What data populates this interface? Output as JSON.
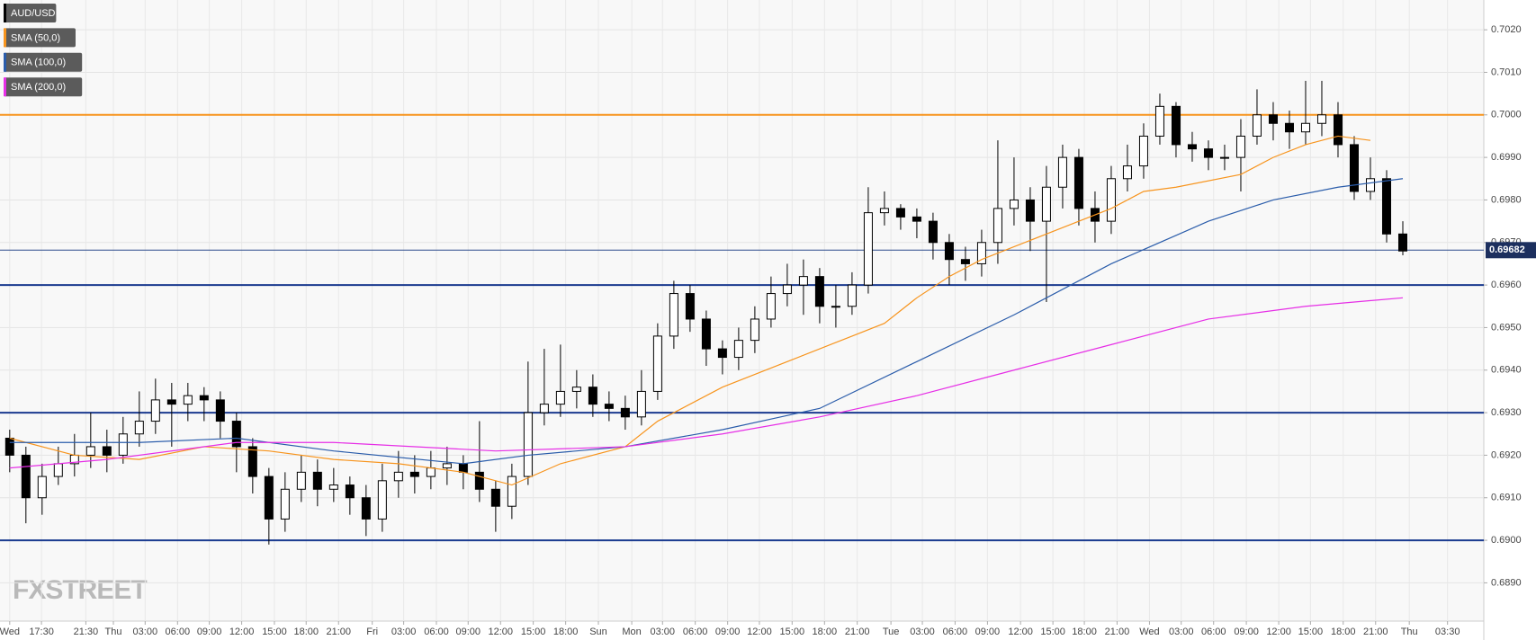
{
  "chart_data": {
    "type": "candlestick",
    "watermark": "FXSTREET",
    "xlim": [
      -0.3,
      45.5
    ],
    "ylim": [
      0.6881,
      0.7027
    ],
    "grid": true,
    "xticks": [
      {
        "value": 0,
        "label": "Wed"
      },
      {
        "value": 0.98,
        "label": "17:30"
      },
      {
        "value": 2.35,
        "label": "21:30"
      },
      {
        "value": 3.2,
        "label": "Thu"
      },
      {
        "value": 4.18,
        "label": "03:00"
      },
      {
        "value": 5.18,
        "label": "06:00"
      },
      {
        "value": 6.16,
        "label": "09:00"
      },
      {
        "value": 7.16,
        "label": "12:00"
      },
      {
        "value": 8.17,
        "label": "15:00"
      },
      {
        "value": 9.15,
        "label": "18:00"
      },
      {
        "value": 10.15,
        "label": "21:00"
      },
      {
        "value": 11.19,
        "label": "Fri"
      },
      {
        "value": 12.16,
        "label": "03:00"
      },
      {
        "value": 13.17,
        "label": "06:00"
      },
      {
        "value": 14.15,
        "label": "09:00"
      },
      {
        "value": 15.15,
        "label": "12:00"
      },
      {
        "value": 16.16,
        "label": "15:00"
      },
      {
        "value": 17.16,
        "label": "18:00"
      },
      {
        "value": 18.17,
        "label": "Sun"
      },
      {
        "value": 19.2,
        "label": "Mon"
      },
      {
        "value": 20.15,
        "label": "03:00"
      },
      {
        "value": 21.16,
        "label": "06:00"
      },
      {
        "value": 22.16,
        "label": "09:00"
      },
      {
        "value": 23.14,
        "label": "12:00"
      },
      {
        "value": 24.15,
        "label": "15:00"
      },
      {
        "value": 25.15,
        "label": "18:00"
      },
      {
        "value": 26.16,
        "label": "21:00"
      },
      {
        "value": 27.2,
        "label": "Tue"
      },
      {
        "value": 28.17,
        "label": "03:00"
      },
      {
        "value": 29.18,
        "label": "06:00"
      },
      {
        "value": 30.18,
        "label": "09:00"
      },
      {
        "value": 31.2,
        "label": "12:00"
      },
      {
        "value": 32.2,
        "label": "15:00"
      },
      {
        "value": 33.17,
        "label": "18:00"
      },
      {
        "value": 34.18,
        "label": "21:00"
      },
      {
        "value": 35.18,
        "label": "Wed"
      },
      {
        "value": 36.16,
        "label": "03:00"
      },
      {
        "value": 37.16,
        "label": "06:00"
      },
      {
        "value": 38.17,
        "label": "09:00"
      },
      {
        "value": 39.17,
        "label": "12:00"
      },
      {
        "value": 40.15,
        "label": "15:00"
      },
      {
        "value": 41.16,
        "label": "18:00"
      },
      {
        "value": 42.16,
        "label": "21:00"
      },
      {
        "value": 43.2,
        "label": "Thu"
      },
      {
        "value": 44.38,
        "label": "03:30"
      }
    ],
    "yticks": [
      {
        "value": 0.689,
        "label": "0.6890"
      },
      {
        "value": 0.69,
        "label": "0.6900"
      },
      {
        "value": 0.691,
        "label": "0.6910"
      },
      {
        "value": 0.692,
        "label": "0.6920"
      },
      {
        "value": 0.693,
        "label": "0.6930"
      },
      {
        "value": 0.694,
        "label": "0.6940"
      },
      {
        "value": 0.695,
        "label": "0.6950"
      },
      {
        "value": 0.696,
        "label": "0.6960"
      },
      {
        "value": 0.697,
        "label": "0.6970"
      },
      {
        "value": 0.698,
        "label": "0.6980"
      },
      {
        "value": 0.699,
        "label": "0.6990"
      },
      {
        "value": 0.7,
        "label": "0.7000"
      },
      {
        "value": 0.701,
        "label": "0.7010"
      },
      {
        "value": 0.702,
        "label": "0.7020"
      }
    ],
    "levels": [
      {
        "value": 0.7,
        "color": "#f7941d"
      },
      {
        "value": 0.696,
        "color": "#1a3a8f"
      },
      {
        "value": 0.693,
        "color": "#1a3a8f"
      },
      {
        "value": 0.69,
        "color": "#1a3a8f"
      }
    ],
    "last_price": 0.69682,
    "series": [
      {
        "name": "AUD/USD",
        "color": "#000000",
        "x": [
          0,
          0.5,
          1,
          1.5,
          2,
          2.5,
          3,
          3.5,
          4,
          4.5,
          5,
          5.5,
          6,
          6.5,
          7,
          7.5,
          8,
          8.5,
          9,
          9.5,
          10,
          10.5,
          11,
          11.5,
          12,
          12.5,
          13,
          13.5,
          14,
          14.5,
          15,
          15.5,
          16,
          16.5,
          17,
          17.5,
          18,
          18.5,
          19,
          19.5,
          20,
          20.5,
          21,
          21.5,
          22,
          22.5,
          23,
          23.5,
          24,
          24.5,
          25,
          25.5,
          26,
          26.5,
          27,
          27.5,
          28,
          28.5,
          29,
          29.5,
          30,
          30.5,
          31,
          31.5,
          32,
          32.5,
          33,
          33.5,
          34,
          34.5,
          35,
          35.5,
          36,
          36.5,
          37,
          37.5,
          38,
          38.5,
          39,
          39.5,
          40,
          40.5,
          41,
          41.5,
          42,
          42.5,
          43
        ],
        "open": [
          0.6924,
          0.692,
          0.691,
          0.6915,
          0.6918,
          0.692,
          0.6922,
          0.692,
          0.6925,
          0.6928,
          0.6933,
          0.6932,
          0.6934,
          0.6933,
          0.6928,
          0.6922,
          0.6915,
          0.6905,
          0.6912,
          0.6916,
          0.6912,
          0.6913,
          0.691,
          0.6905,
          0.6914,
          0.6916,
          0.6915,
          0.6917,
          0.6918,
          0.6916,
          0.6912,
          0.6908,
          0.6915,
          0.693,
          0.6932,
          0.6935,
          0.6936,
          0.6932,
          0.6931,
          0.6929,
          0.6935,
          0.6948,
          0.6958,
          0.6952,
          0.6945,
          0.6943,
          0.6947,
          0.6952,
          0.6958,
          0.696,
          0.6962,
          0.6955,
          0.6955,
          0.696,
          0.6977,
          0.6978,
          0.6976,
          0.6975,
          0.697,
          0.6966,
          0.6965,
          0.697,
          0.6978,
          0.698,
          0.6975,
          0.6983,
          0.699,
          0.6978,
          0.6975,
          0.6985,
          0.6988,
          0.6995,
          0.7002,
          0.6993,
          0.6992,
          0.699,
          0.699,
          0.6995,
          0.7,
          0.6998,
          0.6996,
          0.6998,
          0.7,
          0.6993,
          0.6982,
          0.6985,
          0.6972
        ],
        "high": [
          0.6926,
          0.6922,
          0.6918,
          0.6922,
          0.6925,
          0.693,
          0.6926,
          0.6929,
          0.6935,
          0.6938,
          0.6937,
          0.6937,
          0.6936,
          0.6935,
          0.693,
          0.6924,
          0.6917,
          0.6916,
          0.692,
          0.6919,
          0.6917,
          0.6915,
          0.6913,
          0.6918,
          0.6921,
          0.692,
          0.6921,
          0.6922,
          0.692,
          0.6928,
          0.6914,
          0.6918,
          0.6942,
          0.6945,
          0.6946,
          0.694,
          0.6939,
          0.6935,
          0.6934,
          0.694,
          0.6951,
          0.6961,
          0.696,
          0.6954,
          0.6947,
          0.695,
          0.6955,
          0.6962,
          0.6965,
          0.6966,
          0.6964,
          0.696,
          0.6963,
          0.6983,
          0.6982,
          0.6979,
          0.6978,
          0.6977,
          0.6972,
          0.6969,
          0.6973,
          0.6994,
          0.699,
          0.6983,
          0.6988,
          0.6993,
          0.6992,
          0.6982,
          0.6988,
          0.6993,
          0.6998,
          0.7005,
          0.7003,
          0.6996,
          0.6994,
          0.6993,
          0.6999,
          0.7006,
          0.7003,
          0.7001,
          0.7008,
          0.7008,
          0.7003,
          0.6995,
          0.699,
          0.6987,
          0.6975
        ],
        "low": [
          0.6916,
          0.6904,
          0.6906,
          0.6913,
          0.6915,
          0.6917,
          0.6916,
          0.6918,
          0.6922,
          0.6925,
          0.6922,
          0.6928,
          0.6928,
          0.6924,
          0.6916,
          0.6911,
          0.6899,
          0.6902,
          0.6909,
          0.6908,
          0.6909,
          0.6906,
          0.6901,
          0.6902,
          0.691,
          0.6911,
          0.6912,
          0.6913,
          0.6912,
          0.6909,
          0.6902,
          0.6905,
          0.6913,
          0.6927,
          0.6929,
          0.6931,
          0.6929,
          0.6928,
          0.6926,
          0.6927,
          0.6933,
          0.6945,
          0.6949,
          0.6941,
          0.6939,
          0.694,
          0.6944,
          0.695,
          0.6955,
          0.6953,
          0.6951,
          0.695,
          0.6953,
          0.6958,
          0.6974,
          0.6973,
          0.6971,
          0.6966,
          0.696,
          0.6961,
          0.6962,
          0.6965,
          0.6974,
          0.6968,
          0.6956,
          0.6978,
          0.6974,
          0.697,
          0.6972,
          0.6982,
          0.6985,
          0.6993,
          0.699,
          0.6989,
          0.6987,
          0.6987,
          0.6982,
          0.6993,
          0.6994,
          0.6992,
          0.6993,
          0.6995,
          0.699,
          0.698,
          0.698,
          0.697,
          0.6967
        ],
        "close": [
          0.692,
          0.691,
          0.6915,
          0.6918,
          0.692,
          0.6922,
          0.692,
          0.6925,
          0.6928,
          0.6933,
          0.6932,
          0.6934,
          0.6933,
          0.6928,
          0.6922,
          0.6915,
          0.6905,
          0.6912,
          0.6916,
          0.6912,
          0.6913,
          0.691,
          0.6905,
          0.6914,
          0.6916,
          0.6915,
          0.6917,
          0.6918,
          0.6916,
          0.6912,
          0.6908,
          0.6915,
          0.693,
          0.6932,
          0.6935,
          0.6936,
          0.6932,
          0.6931,
          0.6929,
          0.6935,
          0.6948,
          0.6958,
          0.6952,
          0.6945,
          0.6943,
          0.6947,
          0.6952,
          0.6958,
          0.696,
          0.6962,
          0.6955,
          0.6955,
          0.696,
          0.6977,
          0.6978,
          0.6976,
          0.6975,
          0.697,
          0.6966,
          0.6965,
          0.697,
          0.6978,
          0.698,
          0.6975,
          0.6983,
          0.699,
          0.6978,
          0.6975,
          0.6985,
          0.6988,
          0.6995,
          0.7002,
          0.6993,
          0.6992,
          0.699,
          0.699,
          0.6995,
          0.7,
          0.6998,
          0.6996,
          0.6998,
          0.7,
          0.6993,
          0.6982,
          0.6985,
          0.6972,
          0.6968
        ]
      },
      {
        "name": "SMA (50,0)",
        "color": "#f7941d",
        "x": [
          0,
          2,
          4,
          6,
          8,
          10,
          12,
          14,
          15.5,
          17,
          19,
          20,
          22,
          24,
          26,
          27,
          28,
          29,
          30,
          32,
          34,
          35,
          36,
          38,
          39,
          40,
          41,
          42
        ],
        "values": [
          0.6924,
          0.692,
          0.6919,
          0.6922,
          0.6921,
          0.6919,
          0.6918,
          0.6916,
          0.6913,
          0.6918,
          0.6922,
          0.6928,
          0.6936,
          0.6942,
          0.6948,
          0.6951,
          0.6957,
          0.6962,
          0.6966,
          0.6972,
          0.6978,
          0.6982,
          0.6983,
          0.6986,
          0.699,
          0.6993,
          0.6995,
          0.6994
        ]
      },
      {
        "name": "SMA (100,0)",
        "color": "#2a5caa",
        "x": [
          0,
          4,
          7,
          10,
          14,
          16,
          19,
          22,
          25,
          28,
          31,
          34,
          37,
          39,
          41,
          43
        ],
        "values": [
          0.6923,
          0.6923,
          0.6924,
          0.6921,
          0.6918,
          0.692,
          0.6922,
          0.6926,
          0.6931,
          0.6942,
          0.6953,
          0.6965,
          0.6975,
          0.698,
          0.6983,
          0.6985
        ]
      },
      {
        "name": "SMA (200,0)",
        "color": "#e62ee6",
        "x": [
          0,
          3,
          7,
          10,
          15,
          19,
          22,
          25,
          28,
          31,
          34,
          37,
          40,
          43
        ],
        "values": [
          0.6917,
          0.6919,
          0.6923,
          0.6923,
          0.6921,
          0.6922,
          0.6925,
          0.6929,
          0.6934,
          0.694,
          0.6946,
          0.6952,
          0.6955,
          0.6957
        ]
      }
    ]
  }
}
